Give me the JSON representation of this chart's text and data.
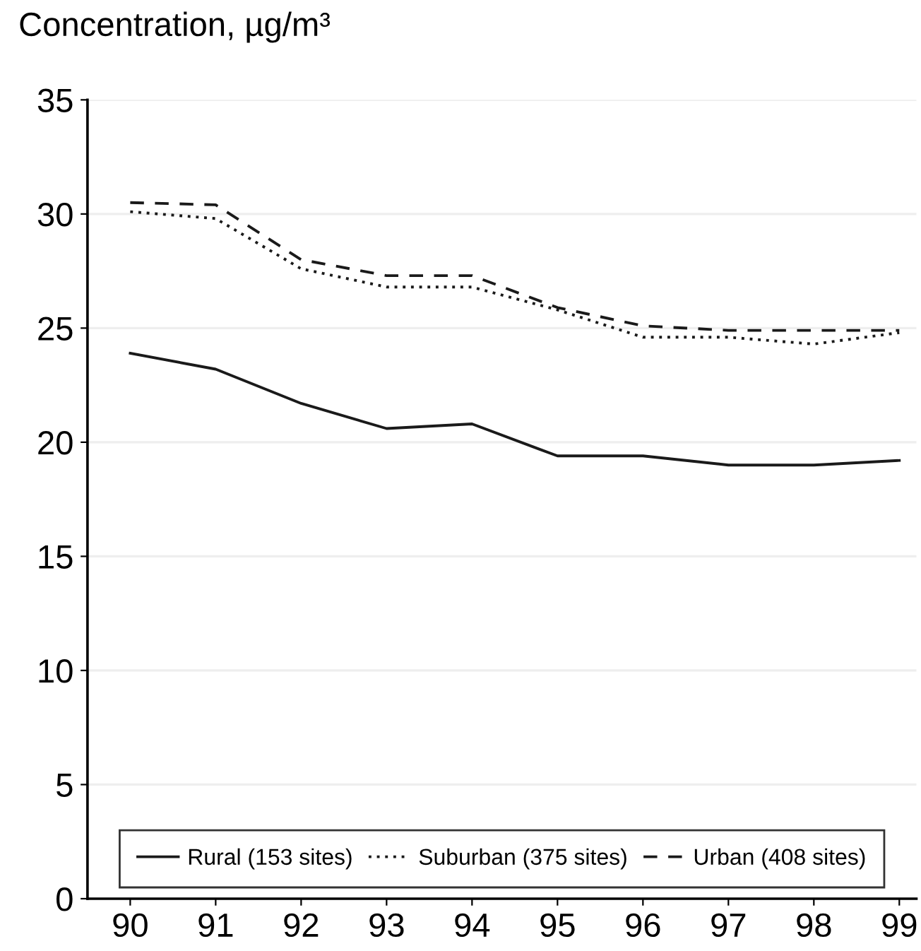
{
  "chart_data": {
    "type": "line",
    "ylabel": "Concentration, µg/m³",
    "x": [
      90,
      91,
      92,
      93,
      94,
      95,
      96,
      97,
      98,
      99
    ],
    "xlim": [
      89.5,
      99.2
    ],
    "xticks": [
      90,
      91,
      92,
      93,
      94,
      95,
      96,
      97,
      98,
      99
    ],
    "ylim": [
      0,
      35
    ],
    "yticks": [
      0,
      5,
      10,
      15,
      20,
      25,
      30,
      35
    ],
    "grid": "y",
    "legend": "bottom",
    "marker": "none",
    "series": [
      {
        "name": "Rural (153 sites)",
        "color": "#1a1a1a",
        "line_style": "solid",
        "values": [
          23.9,
          23.2,
          21.7,
          20.6,
          20.8,
          19.4,
          19.4,
          19.0,
          19.0,
          19.2
        ]
      },
      {
        "name": "Suburban (375 sites)",
        "color": "#1a1a1a",
        "line_style": "dotted",
        "values": [
          30.1,
          29.8,
          27.6,
          26.8,
          26.8,
          25.8,
          24.6,
          24.6,
          24.3,
          24.8
        ]
      },
      {
        "name": "Urban (408 sites)",
        "color": "#1a1a1a",
        "line_style": "dashed",
        "values": [
          30.5,
          30.4,
          28.0,
          27.3,
          27.3,
          25.9,
          25.1,
          24.9,
          24.9,
          24.9
        ]
      }
    ]
  }
}
